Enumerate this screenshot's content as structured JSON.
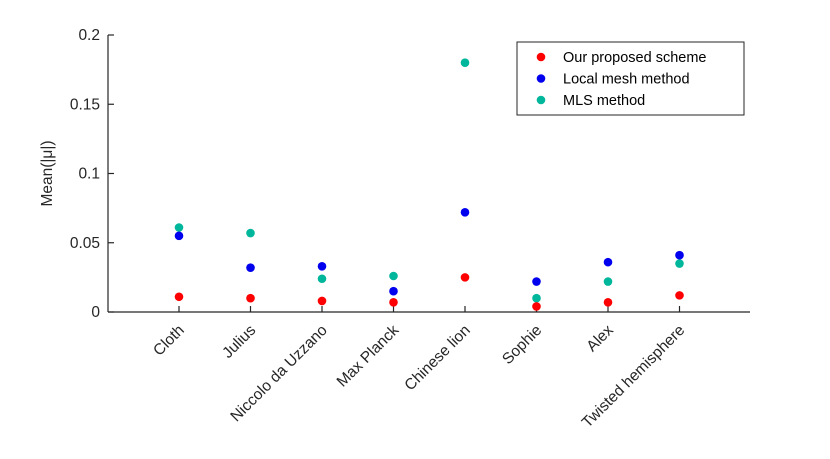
{
  "chart_data": {
    "type": "scatter",
    "title": "",
    "xlabel": "",
    "ylabel": "Mean(|μ|)",
    "ylim": [
      0,
      0.2
    ],
    "yticks": [
      0,
      0.05,
      0.1,
      0.15,
      0.2
    ],
    "ytick_labels": [
      "0",
      "0.05",
      "0.1",
      "0.15",
      "0.2"
    ],
    "categories": [
      "Cloth",
      "Julius",
      "Niccolo da Uzzano",
      "Max Planck",
      "Chinese lion",
      "Sophie",
      "Alex",
      "Twisted hemisphere"
    ],
    "grid": false,
    "legend_position": "top-right",
    "series": [
      {
        "name": "Our proposed scheme",
        "color": "#ff0000",
        "values": [
          0.011,
          0.01,
          0.008,
          0.007,
          0.025,
          0.004,
          0.007,
          0.012
        ]
      },
      {
        "name": "Local mesh method",
        "color": "#0000ee",
        "values": [
          0.055,
          0.032,
          0.033,
          0.015,
          0.072,
          0.022,
          0.036,
          0.041
        ]
      },
      {
        "name": "MLS method",
        "color": "#00b69b",
        "values": [
          0.061,
          0.057,
          0.024,
          0.026,
          0.18,
          0.01,
          0.022,
          0.035
        ]
      }
    ]
  }
}
